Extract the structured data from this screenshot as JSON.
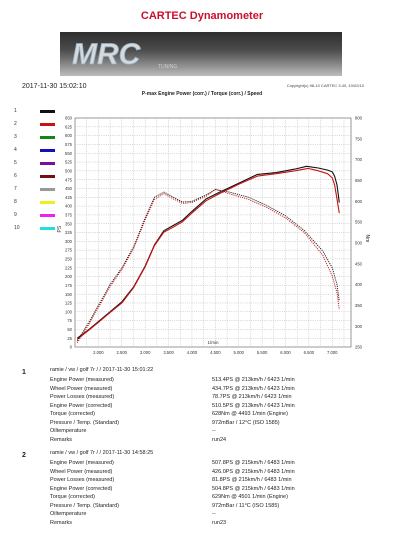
{
  "header": {
    "title": "CARTEC Dynamometer",
    "logo_text": "MRC",
    "logo_sub": "TUNING",
    "datetime": "2017-11-30 15:02:10",
    "copyright": "Copyright(c) 98-10 CARTEC 3.40, 10/02/10",
    "chart_title": "P-max Engine Power (corr.) / Torque (corr.) / Speed"
  },
  "legend": {
    "items": [
      {
        "num": "1",
        "color": "#111111"
      },
      {
        "num": "2",
        "color": "#cc1111"
      },
      {
        "num": "3",
        "color": "#118811"
      },
      {
        "num": "4",
        "color": "#1111bb"
      },
      {
        "num": "5",
        "color": "#771199"
      },
      {
        "num": "6",
        "color": "#771111"
      },
      {
        "num": "7",
        "color": "#999999"
      },
      {
        "num": "8",
        "color": "#eeee22"
      },
      {
        "num": "9",
        "color": "#ee22ee"
      },
      {
        "num": "10",
        "color": "#22dddd"
      }
    ]
  },
  "chart_data": {
    "type": "line",
    "title": "P-max Engine Power (corr.) / Torque (corr.) / Speed",
    "xlabel": "1/min",
    "ylabel_left": "PS",
    "ylabel_right": "Nm",
    "xlim": [
      1500,
      7400
    ],
    "ylim_left": [
      0,
      650
    ],
    "ylim_right": [
      250,
      800
    ],
    "grid": true,
    "x_ticks": [
      "2.000",
      "2.500",
      "3.000",
      "3.500",
      "4.000",
      "4.500",
      "5.000",
      "5.500",
      "6.000",
      "6.500",
      "7.000"
    ],
    "y_ticks_left": [
      "0",
      "25",
      "50",
      "75",
      "100",
      "125",
      "150",
      "175",
      "200",
      "225",
      "250",
      "275",
      "300",
      "325",
      "350",
      "375",
      "400",
      "425",
      "450",
      "475",
      "500",
      "525",
      "550",
      "575",
      "600",
      "625",
      "650"
    ],
    "y_ticks_right": [
      "250",
      "300",
      "350",
      "400",
      "450",
      "500",
      "550",
      "600",
      "650",
      "700",
      "750",
      "800"
    ],
    "series": [
      {
        "name": "Power 1",
        "axis": "left",
        "color": "#111111",
        "dashed": false,
        "x": [
          1550,
          1800,
          2000,
          2250,
          2500,
          2750,
          3000,
          3200,
          3400,
          3600,
          3800,
          4000,
          4300,
          4600,
          5000,
          5400,
          5800,
          6200,
          6450,
          6700,
          6900,
          7000,
          7050,
          7100,
          7150
        ],
        "y": [
          25,
          50,
          72,
          100,
          128,
          170,
          230,
          290,
          330,
          345,
          360,
          385,
          420,
          440,
          465,
          490,
          495,
          505,
          513,
          508,
          502,
          497,
          485,
          460,
          410
        ]
      },
      {
        "name": "Power 2",
        "axis": "left",
        "color": "#cc1111",
        "dashed": false,
        "x": [
          1550,
          1800,
          2000,
          2250,
          2500,
          2750,
          3000,
          3200,
          3400,
          3600,
          3800,
          4000,
          4300,
          4600,
          5000,
          5400,
          5800,
          6200,
          6483,
          6700,
          6900,
          7000,
          7050,
          7100,
          7150
        ],
        "y": [
          22,
          48,
          70,
          98,
          125,
          168,
          228,
          288,
          326,
          340,
          356,
          380,
          415,
          436,
          462,
          485,
          492,
          500,
          507,
          500,
          492,
          480,
          460,
          420,
          380
        ]
      },
      {
        "name": "Torque 1",
        "axis": "right",
        "color": "#111111",
        "dashed": true,
        "x": [
          1550,
          1800,
          2000,
          2250,
          2500,
          2750,
          3000,
          3200,
          3400,
          3600,
          3800,
          4000,
          4300,
          4500,
          4800,
          5200,
          5600,
          6000,
          6400,
          6800,
          7000,
          7100,
          7150
        ],
        "y": [
          265,
          310,
          350,
          400,
          440,
          490,
          560,
          610,
          622,
          610,
          598,
          600,
          615,
          628,
          622,
          610,
          590,
          565,
          530,
          480,
          440,
          400,
          360
        ]
      },
      {
        "name": "Torque 2",
        "axis": "right",
        "color": "#cc1111",
        "dashed": true,
        "x": [
          1550,
          1800,
          2000,
          2250,
          2500,
          2750,
          3000,
          3200,
          3400,
          3600,
          3800,
          4000,
          4300,
          4501,
          4800,
          5200,
          5600,
          6000,
          6400,
          6800,
          7000,
          7100,
          7150
        ],
        "y": [
          260,
          305,
          345,
          395,
          436,
          486,
          556,
          605,
          618,
          606,
          595,
          597,
          612,
          629,
          618,
          605,
          585,
          560,
          525,
          470,
          420,
          380,
          340
        ]
      }
    ]
  },
  "results": [
    {
      "num": "1",
      "header": "ramie / vw / golf 7r /   / 2017-11-30 15:01:22",
      "rows": [
        {
          "label": "Engine Power (measured)",
          "value": "513.4PS @ 213km/h / 6423 1/min"
        },
        {
          "label": "Wheel Power (measured)",
          "value": "434.7PS @ 213km/h / 6423 1/min"
        },
        {
          "label": "Power Losses (measured)",
          "value": "78.7PS @ 213km/h / 6423 1/min"
        },
        {
          "label": "Engine Power (corrected)",
          "value": "510.5PS @ 213km/h / 6423 1/min"
        },
        {
          "label": "Torque (corrected)",
          "value": "628Nm @ 4493 1/min (Engine)"
        },
        {
          "label": "Pressure / Temp. (Standard)",
          "value": "972mBar / 12°C   (ISO 1585)"
        },
        {
          "label": "Oiltemperature",
          "value": "--"
        },
        {
          "label": "Remarks",
          "value": "run24"
        }
      ]
    },
    {
      "num": "2",
      "header": "ramie / vw / golf 7r /   / 2017-11-30 14:58:25",
      "rows": [
        {
          "label": "Engine Power (measured)",
          "value": "507.8PS @ 215km/h / 6483 1/min"
        },
        {
          "label": "Wheel Power (measured)",
          "value": "426.0PS @ 215km/h / 6483 1/min"
        },
        {
          "label": "Power Losses (measured)",
          "value": "81.8PS @ 215km/h / 6483 1/min"
        },
        {
          "label": "Engine Power (corrected)",
          "value": "504.8PS @ 215km/h / 6483 1/min"
        },
        {
          "label": "Torque (corrected)",
          "value": "629Nm @ 4501 1/min (Engine)"
        },
        {
          "label": "Pressure / Temp. (Standard)",
          "value": "972mBar / 11°C   (ISO 1585)"
        },
        {
          "label": "Oiltemperature",
          "value": "--"
        },
        {
          "label": "Remarks",
          "value": "run23"
        }
      ]
    }
  ]
}
